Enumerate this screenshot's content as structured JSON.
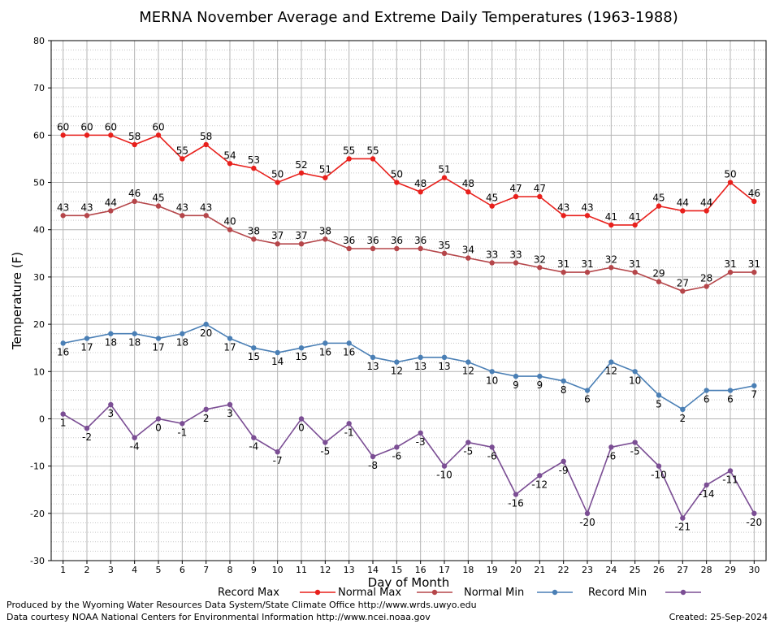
{
  "chart_data": {
    "type": "line",
    "title": "MERNA November Average and Extreme Daily Temperatures (1963-1988)",
    "xlabel": "Day of Month",
    "ylabel": "Temperature (F)",
    "ylim": [
      -30,
      80
    ],
    "yticks": [
      -30,
      -20,
      -10,
      0,
      10,
      20,
      30,
      40,
      50,
      60,
      70,
      80
    ],
    "x": [
      1,
      2,
      3,
      4,
      5,
      6,
      7,
      8,
      9,
      10,
      11,
      12,
      13,
      14,
      15,
      16,
      17,
      18,
      19,
      20,
      21,
      22,
      23,
      24,
      25,
      26,
      27,
      28,
      29,
      30
    ],
    "grid": true,
    "legend_position": "bottom",
    "series": [
      {
        "name": "Record Max",
        "color": "#e8201c",
        "label_position": "above",
        "values": [
          60,
          60,
          60,
          58,
          60,
          55,
          58,
          54,
          53,
          50,
          52,
          51,
          55,
          55,
          50,
          48,
          51,
          48,
          45,
          47,
          47,
          43,
          43,
          41,
          41,
          45,
          44,
          44,
          50,
          46
        ]
      },
      {
        "name": "Normal Max",
        "color": "#b5464a",
        "label_position": "above",
        "values": [
          43,
          43,
          44,
          46,
          45,
          43,
          43,
          40,
          38,
          37,
          37,
          38,
          36,
          36,
          36,
          36,
          35,
          34,
          33,
          33,
          32,
          31,
          31,
          32,
          31,
          29,
          27,
          28,
          31,
          31
        ]
      },
      {
        "name": "Normal Min",
        "color": "#4a7fb5",
        "label_position": "below",
        "values": [
          16,
          17,
          18,
          18,
          17,
          18,
          20,
          17,
          15,
          14,
          15,
          16,
          16,
          13,
          12,
          13,
          13,
          12,
          10,
          9,
          9,
          8,
          6,
          12,
          10,
          5,
          2,
          6,
          6,
          7
        ]
      },
      {
        "name": "Record Min",
        "color": "#7b4e94",
        "label_position": "below",
        "values": [
          1,
          -2,
          3,
          -4,
          0,
          -1,
          2,
          3,
          -4,
          -7,
          0,
          -5,
          -1,
          -8,
          -6,
          -3,
          -10,
          -5,
          -6,
          -16,
          -12,
          -9,
          -20,
          -6,
          -5,
          -10,
          -21,
          -14,
          -11,
          -20
        ]
      }
    ]
  },
  "footer": {
    "produced_by": "Produced by the Wyoming Water Resources Data System/State Climate Office http://www.wrds.uwyo.edu",
    "courtesy": "Data courtesy NOAA National Centers for Environmental Information http://www.ncei.noaa.gov",
    "created": "Created:  25-Sep-2024"
  }
}
